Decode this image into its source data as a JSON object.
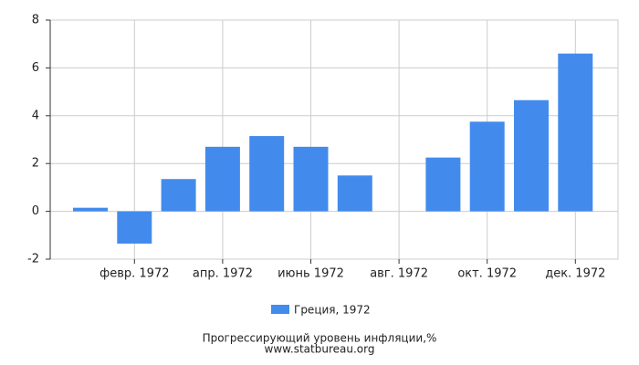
{
  "chart_data": {
    "type": "bar",
    "title": "Прогрессирующий уровень инфляции,%",
    "subtitle": "www.statbureau.org",
    "categories": [
      null,
      "февр. 1972",
      null,
      "апр. 1972",
      null,
      "июнь 1972",
      null,
      "авг. 1972",
      null,
      "окт. 1972",
      null,
      "дек. 1972"
    ],
    "series": [
      {
        "name": "Греция, 1972",
        "color": "#428bed",
        "values": [
          0.15,
          -1.35,
          1.35,
          2.7,
          3.15,
          2.7,
          1.5,
          0,
          2.25,
          3.75,
          4.65,
          6.6
        ]
      }
    ],
    "ylim": [
      -2,
      8
    ],
    "yticks": [
      -2,
      0,
      2,
      4,
      6,
      8
    ],
    "grid": true
  }
}
